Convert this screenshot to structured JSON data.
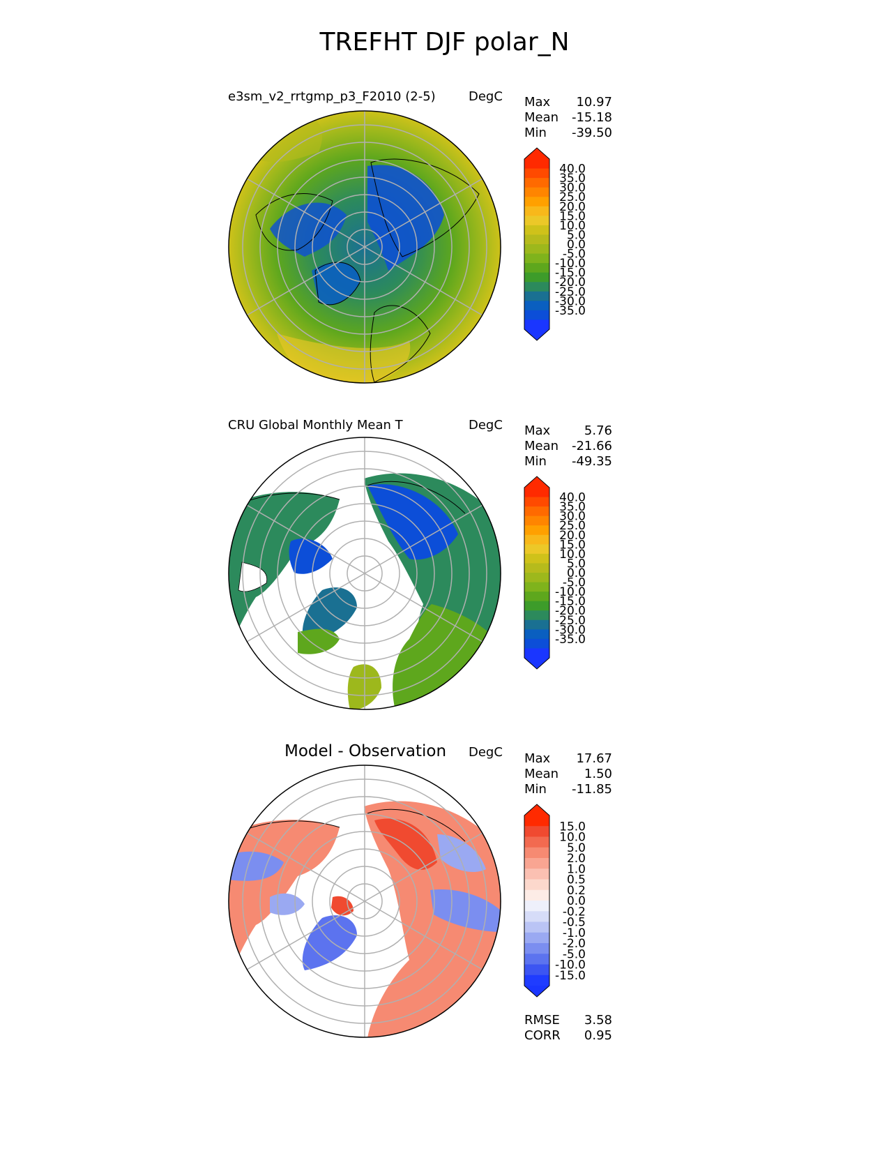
{
  "figure": {
    "title": "TREFHT DJF polar_N"
  },
  "panels": [
    {
      "title": "e3sm_v2_rrtgmp_p3_F2010 (2-5)",
      "units": "DegC",
      "stats": [
        {
          "label": "Max",
          "value": "10.97"
        },
        {
          "label": "Mean",
          "value": "-15.18"
        },
        {
          "label": "Min",
          "value": "-39.50"
        }
      ],
      "colorbar": {
        "ticks": [
          "40.0",
          "35.0",
          "30.0",
          "25.0",
          "20.0",
          "15.0",
          "10.0",
          "5.0",
          "0.0",
          "-5.0",
          "-10.0",
          "-15.0",
          "-20.0",
          "-25.0",
          "-30.0",
          "-35.0"
        ],
        "colors": [
          "#ff2a00",
          "#ff4a00",
          "#ff6a00",
          "#ff8500",
          "#ffa000",
          "#f8b81a",
          "#ecc828",
          "#cfc21a",
          "#b6bb1c",
          "#9db81c",
          "#7fb31c",
          "#5ea71d",
          "#3d9c2a",
          "#2c8a5c",
          "#1a7092",
          "#0a5fc0",
          "#0c4ed8",
          "#1a36ff"
        ],
        "arrow_top": "#ff2a00",
        "arrow_bottom": "#1a36ff"
      }
    },
    {
      "title": "CRU Global Monthly Mean T",
      "units": "DegC",
      "stats": [
        {
          "label": "Max",
          "value": "5.76"
        },
        {
          "label": "Mean",
          "value": "-21.66"
        },
        {
          "label": "Min",
          "value": "-49.35"
        }
      ],
      "colorbar": {
        "ticks": [
          "40.0",
          "35.0",
          "30.0",
          "25.0",
          "20.0",
          "15.0",
          "10.0",
          "5.0",
          "0.0",
          "-5.0",
          "-10.0",
          "-15.0",
          "-20.0",
          "-25.0",
          "-30.0",
          "-35.0"
        ],
        "colors": [
          "#ff2a00",
          "#ff4a00",
          "#ff6a00",
          "#ff8500",
          "#ffa000",
          "#f8b81a",
          "#ecc828",
          "#cfc21a",
          "#b6bb1c",
          "#9db81c",
          "#7fb31c",
          "#5ea71d",
          "#3d9c2a",
          "#2c8a5c",
          "#1a7092",
          "#0a5fc0",
          "#0c4ed8",
          "#1a36ff"
        ],
        "arrow_top": "#ff2a00",
        "arrow_bottom": "#1a36ff"
      }
    },
    {
      "title": "Model - Observation",
      "units": "DegC",
      "stats": [
        {
          "label": "Max",
          "value": "17.67"
        },
        {
          "label": "Mean",
          "value": "1.50"
        },
        {
          "label": "Min",
          "value": "-11.85"
        }
      ],
      "extra_stats": [
        {
          "label": "RMSE",
          "value": "3.58"
        },
        {
          "label": "CORR",
          "value": "0.95"
        }
      ],
      "colorbar": {
        "ticks": [
          "15.0",
          "10.0",
          "5.0",
          "2.0",
          "1.0",
          "0.5",
          "0.2",
          "0.0",
          "-0.2",
          "-0.5",
          "-1.0",
          "-2.0",
          "-5.0",
          "-10.0",
          "-15.0"
        ],
        "colors": [
          "#ff2a00",
          "#f04a30",
          "#f26a50",
          "#f68a72",
          "#f9a592",
          "#fbc0b2",
          "#fcd8cc",
          "#fdece6",
          "#eef0fb",
          "#d6dcf8",
          "#bac4f5",
          "#9aa9f2",
          "#7b8ef0",
          "#5c73ef",
          "#3c55f2",
          "#1f3cff"
        ],
        "arrow_top": "#ff2a00",
        "arrow_bottom": "#1a36ff"
      }
    }
  ]
}
